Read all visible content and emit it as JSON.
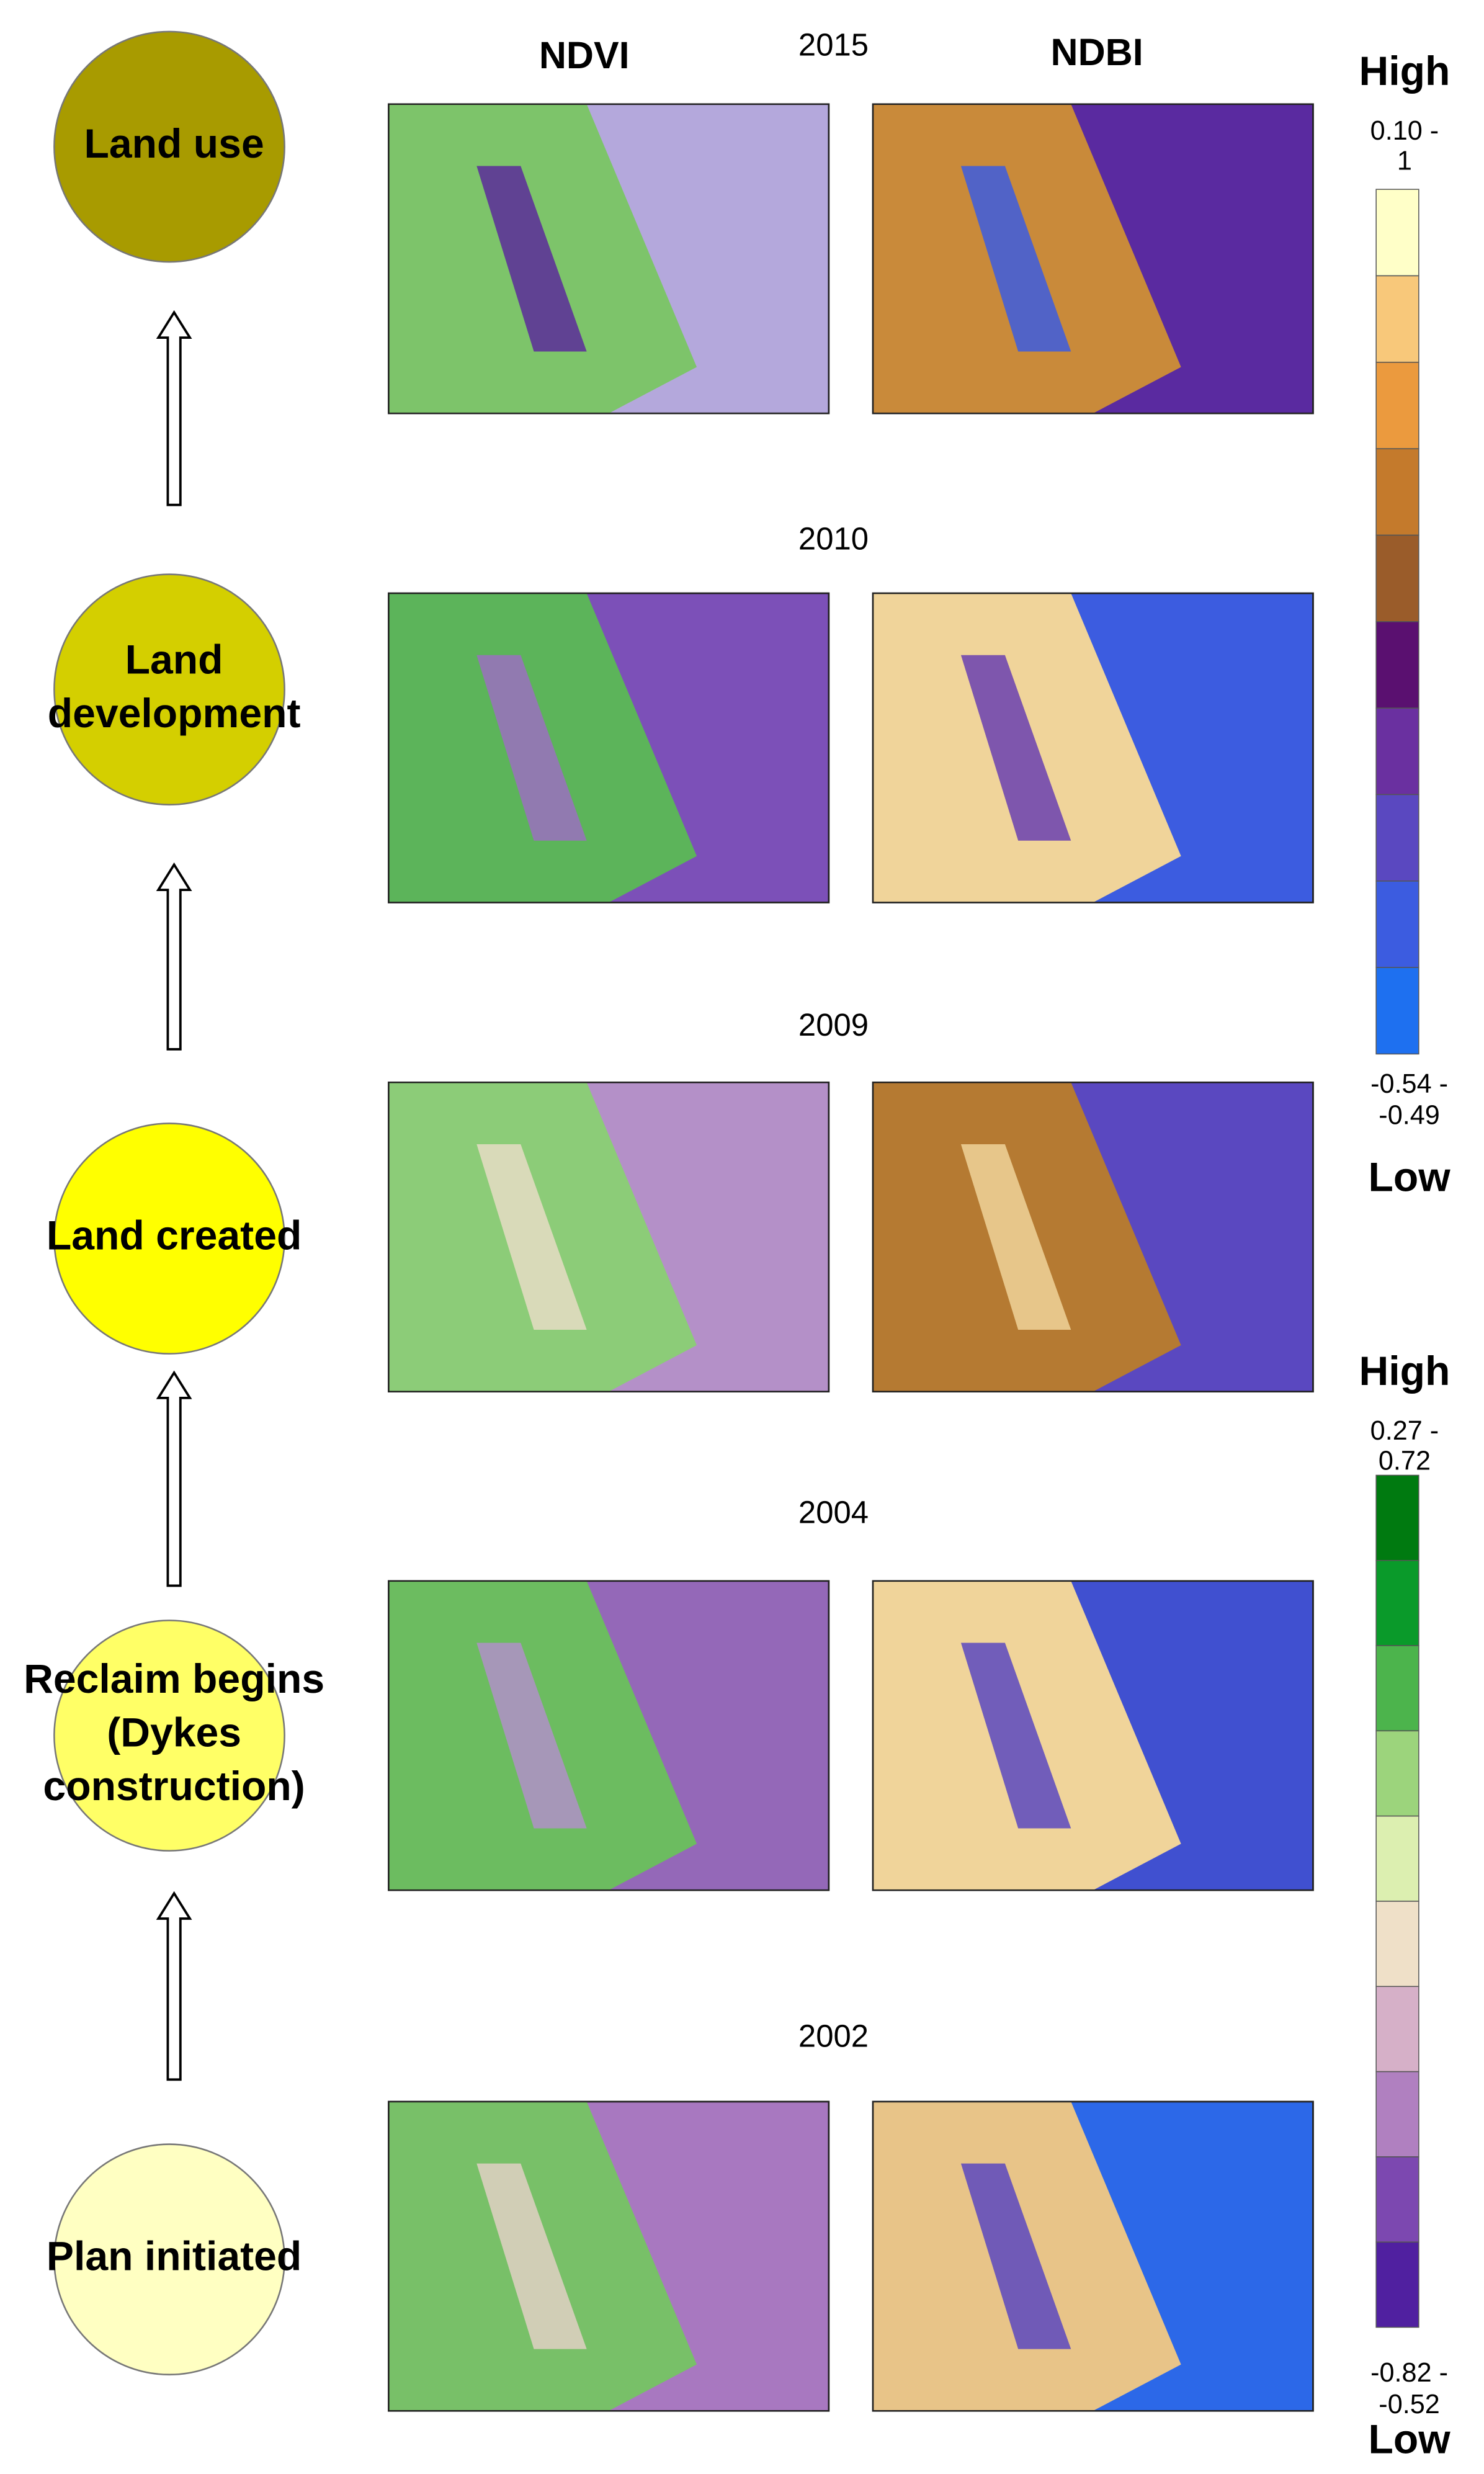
{
  "headers": {
    "ndvi": "NDVI",
    "ndbi": "NDBI"
  },
  "stages": [
    {
      "lines": [
        "Land use"
      ]
    },
    {
      "lines": [
        "Land",
        "development"
      ]
    },
    {
      "lines": [
        "Land created"
      ]
    },
    {
      "lines": [
        "Reclaim begins",
        "(Dykes",
        "construction)"
      ]
    },
    {
      "lines": [
        "Plan initiated"
      ]
    }
  ],
  "years": [
    "2015",
    "2010",
    "2009",
    "2004",
    "2002"
  ],
  "legends": [
    {
      "high": "High",
      "max_label": [
        "0.10 -",
        "1"
      ],
      "min_label": [
        "-0.54 -",
        "-0.49"
      ],
      "low": "Low"
    },
    {
      "high": "High",
      "max_label": [
        "0.27 -",
        "0.72"
      ],
      "min_label": [
        "-0.82 -",
        "-0.52"
      ],
      "low": "Low"
    }
  ]
}
